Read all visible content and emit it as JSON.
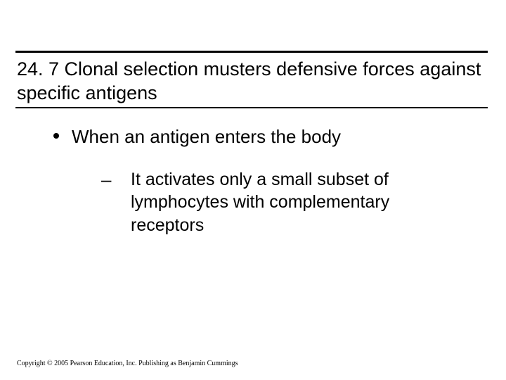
{
  "title": "24. 7 Clonal selection musters defensive forces against specific antigens",
  "bullets": {
    "level1": "When an antigen enters the body",
    "level2": "It activates only a small subset of lymphocytes with complementary receptors"
  },
  "dash": "–",
  "copyright": "Copyright © 2005 Pearson Education, Inc. Publishing as Benjamin Cummings",
  "colors": {
    "bg": "#ffffff",
    "text": "#000000",
    "rule": "#000000"
  },
  "fonts": {
    "title_size_pt": 27,
    "body_size_pt": 26,
    "sub_size_pt": 25,
    "copyright_size_pt": 10
  }
}
